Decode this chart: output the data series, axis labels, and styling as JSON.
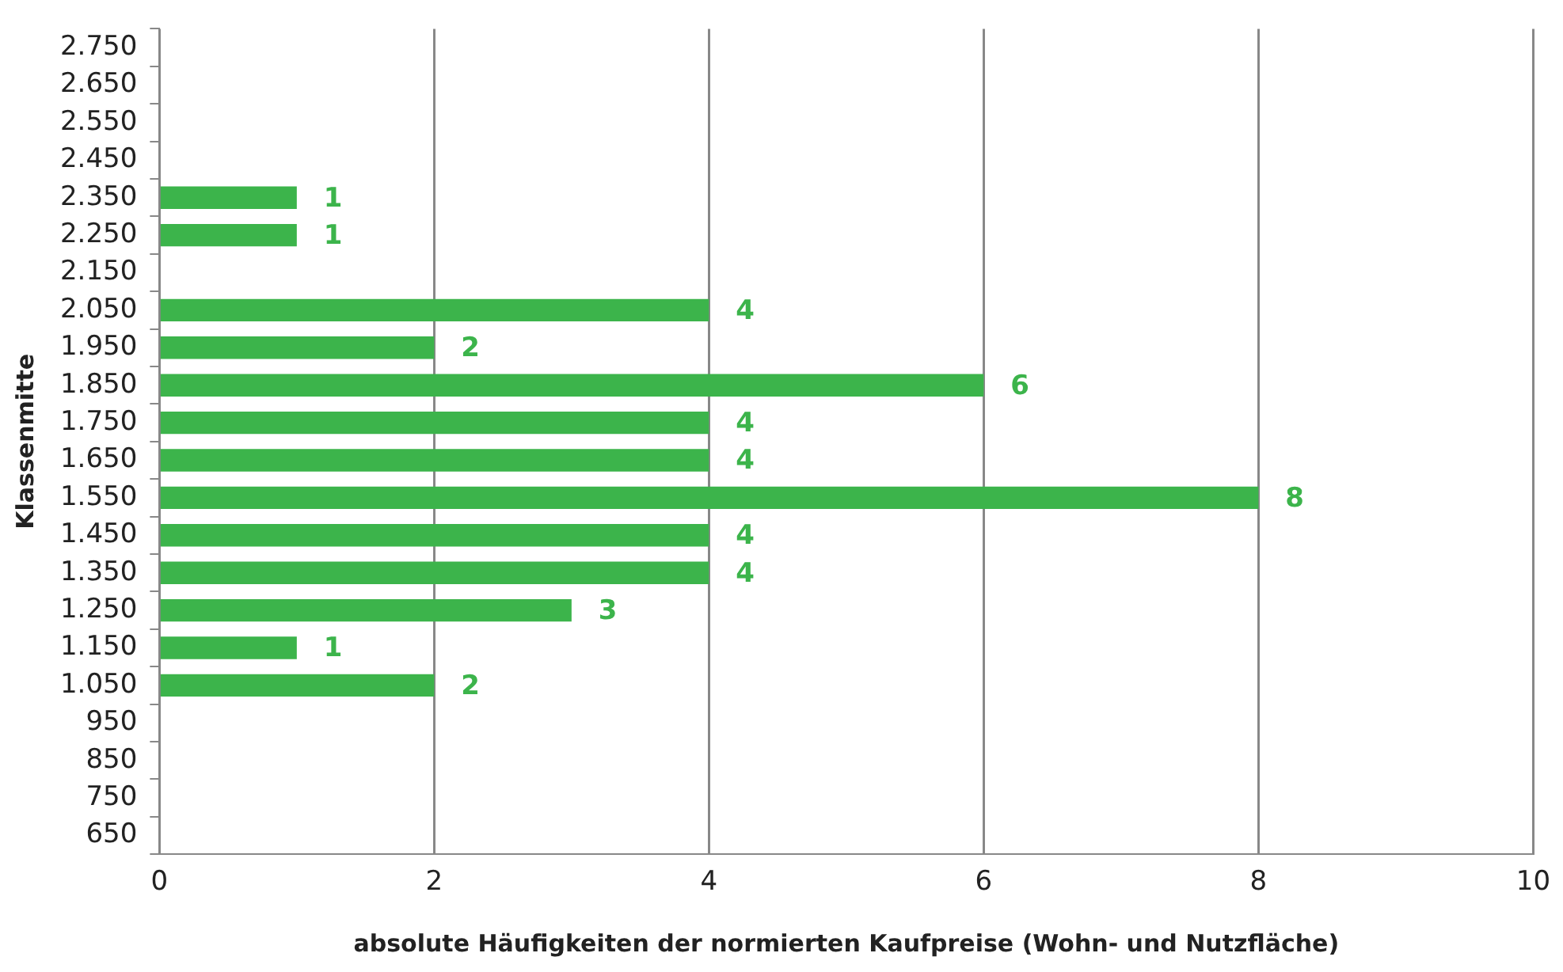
{
  "chart_data": {
    "type": "bar",
    "orientation": "horizontal",
    "xlabel": "absolute Häufigkeiten der normierten Kaufpreise (Wohn- und Nutzfläche)",
    "ylabel": "Klassenmitte",
    "categories": [
      "2.750",
      "2.650",
      "2.550",
      "2.450",
      "2.350",
      "2.250",
      "2.150",
      "2.050",
      "1.950",
      "1.850",
      "1.750",
      "1.650",
      "1.550",
      "1.450",
      "1.350",
      "1.250",
      "1.150",
      "1.050",
      "950",
      "850",
      "750",
      "650"
    ],
    "values": [
      null,
      null,
      null,
      null,
      1,
      1,
      null,
      4,
      2,
      6,
      4,
      4,
      8,
      4,
      4,
      3,
      1,
      2,
      null,
      null,
      null,
      null
    ],
    "color": "#3cb44b",
    "xlim": [
      0,
      10
    ],
    "xticks": [
      0,
      2,
      4,
      6,
      8,
      10
    ],
    "grid": "x",
    "data_labels": true,
    "legend": false
  }
}
